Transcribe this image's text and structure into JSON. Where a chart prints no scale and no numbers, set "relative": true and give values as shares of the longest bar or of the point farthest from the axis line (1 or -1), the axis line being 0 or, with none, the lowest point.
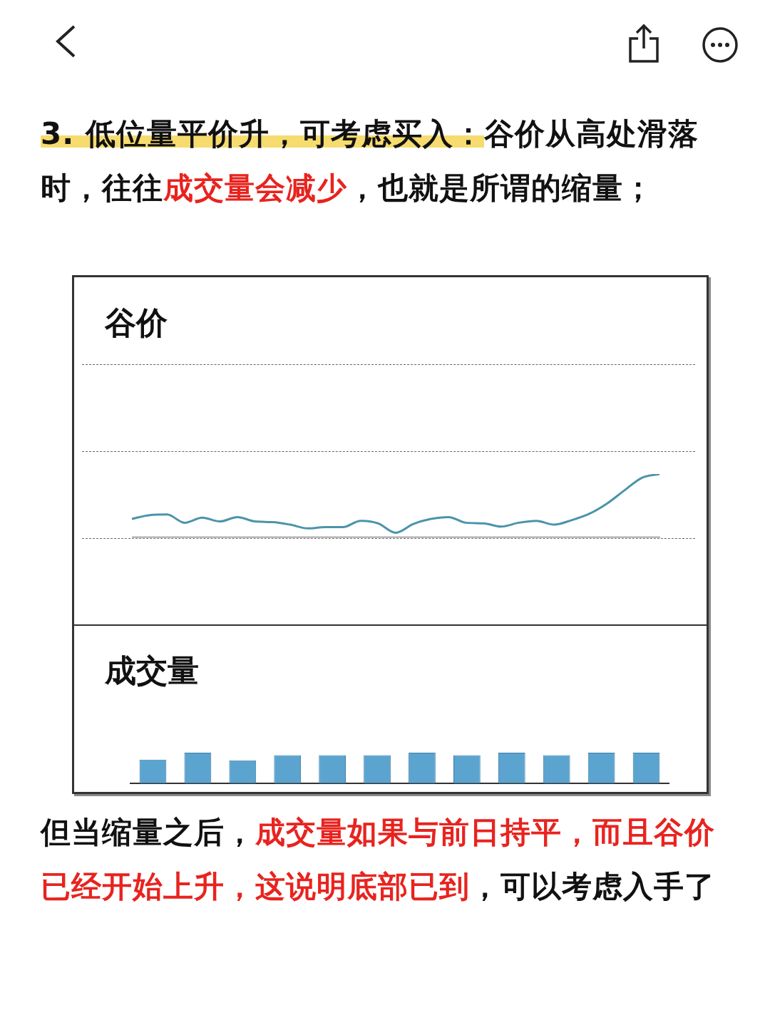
{
  "chart_data": [
    {
      "type": "line",
      "title": "谷价",
      "relative": true,
      "color": "#4a94aa",
      "categories": [
        null,
        null,
        null,
        null,
        null,
        null,
        null,
        null,
        null,
        null,
        null,
        null,
        null,
        null,
        null,
        null,
        null,
        null,
        null,
        null,
        null,
        null,
        null,
        null,
        null,
        null,
        null,
        null,
        null,
        null,
        null
      ],
      "values": [
        0.29,
        0.35,
        0.36,
        0.23,
        0.31,
        0.25,
        0.32,
        0.25,
        0.24,
        0.2,
        0.14,
        0.16,
        0.16,
        0.26,
        0.22,
        0.07,
        0.21,
        0.29,
        0.32,
        0.23,
        0.22,
        0.17,
        0.23,
        0.26,
        0.2,
        0.27,
        0.37,
        0.53,
        0.74,
        0.94,
        1
      ],
      "annotations": [
        "3. 低位量平价升，可考虑买入：",
        "谷价从高处滑落时，往往",
        "成交量会减少",
        "，也就是所谓的缩量；"
      ]
    },
    {
      "type": "bar",
      "title": "成交量",
      "relative": true,
      "color": "#5ba4cf",
      "categories": [
        null,
        null,
        null,
        null,
        null,
        null,
        null,
        null,
        null,
        null,
        null,
        null
      ],
      "values": [
        0.77,
        1,
        0.75,
        0.92,
        0.92,
        0.92,
        1,
        0.92,
        1,
        0.92,
        1,
        1
      ],
      "annotations": [
        "但当缩量之后，",
        "成交量如果与前日持平，而且谷价已经开始上升，这说明底部已到",
        "，可以考虑入手了"
      ]
    }
  ]
}
